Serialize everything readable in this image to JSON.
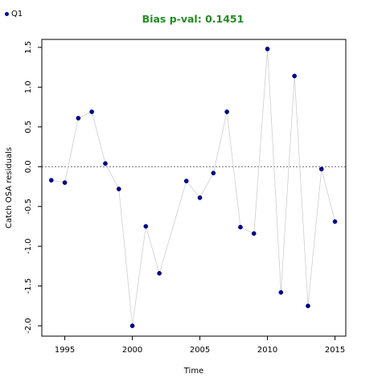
{
  "legend": {
    "label": "Q1",
    "color": "#00008B"
  },
  "title_color": "#228B22",
  "chart_data": {
    "type": "scatter",
    "title": "Bias p-val: 0.1451",
    "xlabel": "Time",
    "ylabel": "Catch OSA residuals",
    "xlim": [
      1993.3,
      2015.8
    ],
    "ylim": [
      -2.13,
      1.6
    ],
    "xticks": [
      1995,
      2000,
      2005,
      2010,
      2015
    ],
    "yticks": [
      -2.0,
      -1.5,
      -1.0,
      -0.5,
      0.0,
      0.5,
      1.0,
      1.5
    ],
    "ytick_labels": [
      "-2.0",
      "-1.5",
      "-1.0",
      "-0.5",
      "0.0",
      "0.5",
      "1.0",
      "1.5"
    ],
    "reference_line": 0,
    "series": [
      {
        "name": "Q1",
        "color": "#00008B",
        "line_color": "#CFCFCF",
        "x": [
          1994,
          1995,
          1996,
          1997,
          1998,
          1999,
          2000,
          2001,
          2002,
          2004,
          2005,
          2006,
          2007,
          2008,
          2009,
          2010,
          2011,
          2012,
          2013,
          2014,
          2015
        ],
        "y": [
          -0.17,
          -0.2,
          0.61,
          0.69,
          0.04,
          -0.28,
          -2.0,
          -0.75,
          -1.34,
          -0.18,
          -0.39,
          -0.08,
          0.69,
          -0.76,
          -0.84,
          1.48,
          -1.58,
          1.14,
          -1.75,
          -0.03,
          -0.69
        ]
      }
    ]
  }
}
